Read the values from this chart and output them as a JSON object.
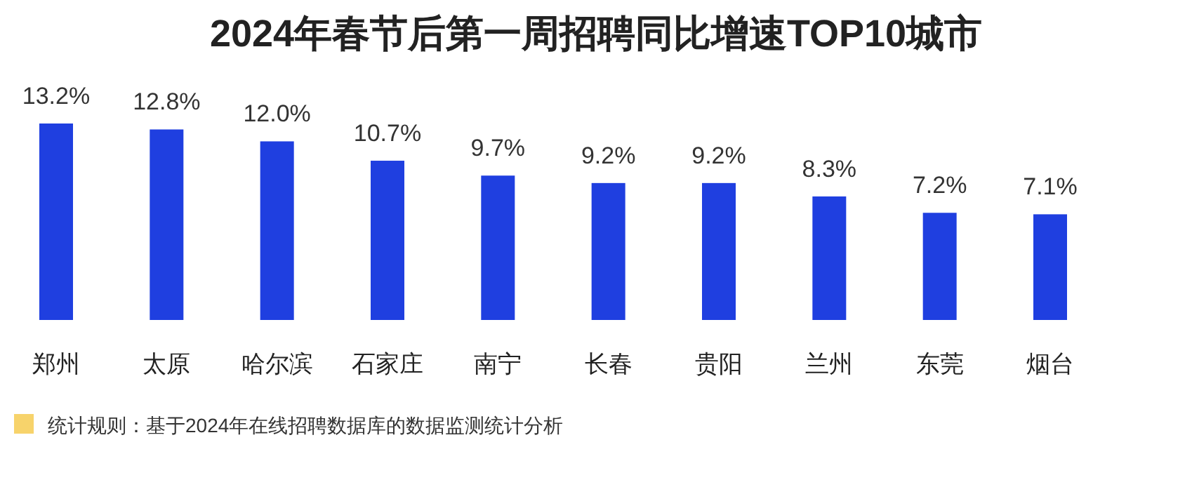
{
  "chart_data": {
    "type": "bar",
    "title": "2024年春节后第一周招聘同比增速TOP10城市",
    "categories": [
      "郑州",
      "太原",
      "哈尔滨",
      "石家庄",
      "南宁",
      "长春",
      "贵阳",
      "兰州",
      "东莞",
      "烟台"
    ],
    "values": [
      13.2,
      12.8,
      12.0,
      10.7,
      9.7,
      9.2,
      9.2,
      8.3,
      7.2,
      7.1
    ],
    "value_labels": [
      "13.2%",
      "12.8%",
      "12.0%",
      "10.7%",
      "9.7%",
      "9.2%",
      "9.2%",
      "8.3%",
      "7.2%",
      "7.1%"
    ],
    "color": "#1f3fe0",
    "annotations": [
      "统计规则：基于2024年在线招聘数据库的数据监测统计分析"
    ]
  }
}
